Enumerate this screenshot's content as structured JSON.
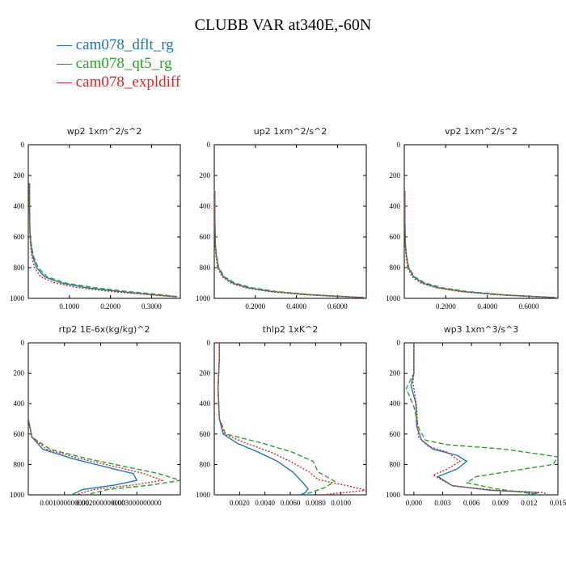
{
  "title": "CLUBB VAR at340E,-60N",
  "legend": [
    {
      "label": "cam078_dflt_rg",
      "color": "#1f77b4"
    },
    {
      "label": "cam078_qt5_rg",
      "color": "#2ca02c"
    },
    {
      "label": "cam078_expldiff",
      "color": "#d62728"
    }
  ],
  "chart_data": [
    {
      "type": "line",
      "title": "wp2   1xm^2/s^2",
      "xlim": [
        0,
        0.37
      ],
      "ylim": [
        0,
        1000
      ],
      "xticks": [
        {
          "v": 0.1,
          "l": "0.1000"
        },
        {
          "v": 0.2,
          "l": "0.2000"
        },
        {
          "v": 0.3,
          "l": "0.3000"
        }
      ],
      "yticks": [
        "0",
        "200",
        "400",
        "600",
        "800",
        "1000"
      ],
      "series": [
        {
          "name": "cam078_dflt_rg",
          "x": [
            0.003,
            0.003,
            0.004,
            0.006,
            0.01,
            0.02,
            0.04,
            0.08,
            0.14,
            0.22,
            0.3,
            0.36
          ],
          "y": [
            250,
            400,
            560,
            640,
            720,
            800,
            860,
            900,
            930,
            955,
            975,
            990
          ]
        },
        {
          "name": "cam078_qt5_rg",
          "x": [
            0.003,
            0.003,
            0.004,
            0.007,
            0.012,
            0.024,
            0.046,
            0.09,
            0.16,
            0.24,
            0.32,
            0.37
          ],
          "y": [
            250,
            400,
            560,
            640,
            720,
            800,
            860,
            900,
            930,
            955,
            975,
            990
          ]
        },
        {
          "name": "cam078_expldiff",
          "x": [
            0.003,
            0.003,
            0.004,
            0.005,
            0.008,
            0.015,
            0.03,
            0.065,
            0.12,
            0.2,
            0.29,
            0.36
          ],
          "y": [
            250,
            400,
            560,
            640,
            720,
            800,
            860,
            900,
            930,
            955,
            975,
            990
          ]
        }
      ]
    },
    {
      "type": "line",
      "title": "up2   1xm^2/s^2",
      "xlim": [
        0,
        0.74
      ],
      "ylim": [
        0,
        1000
      ],
      "xticks": [
        {
          "v": 0.2,
          "l": "0.2000"
        },
        {
          "v": 0.4,
          "l": "0.4000"
        },
        {
          "v": 0.6,
          "l": "0.6000"
        }
      ],
      "yticks": [
        "0",
        "200",
        "400",
        "600",
        "800",
        "1000"
      ],
      "series": [
        {
          "name": "cam078_dflt_rg",
          "x": [
            0.003,
            0.003,
            0.005,
            0.01,
            0.02,
            0.045,
            0.09,
            0.16,
            0.28,
            0.45,
            0.62,
            0.73
          ],
          "y": [
            300,
            500,
            640,
            720,
            800,
            860,
            900,
            930,
            955,
            975,
            988,
            995
          ]
        },
        {
          "name": "cam078_qt5_rg",
          "x": [
            0.003,
            0.003,
            0.005,
            0.011,
            0.022,
            0.05,
            0.1,
            0.18,
            0.3,
            0.47,
            0.64,
            0.74
          ],
          "y": [
            300,
            500,
            640,
            720,
            800,
            860,
            900,
            930,
            955,
            975,
            988,
            995
          ]
        },
        {
          "name": "cam078_expldiff",
          "x": [
            0.003,
            0.003,
            0.004,
            0.008,
            0.016,
            0.038,
            0.08,
            0.15,
            0.26,
            0.43,
            0.6,
            0.72
          ],
          "y": [
            300,
            500,
            640,
            720,
            800,
            860,
            900,
            930,
            955,
            975,
            988,
            995
          ]
        }
      ]
    },
    {
      "type": "line",
      "title": "vp2   1xm^2/s^2",
      "xlim": [
        0,
        0.74
      ],
      "ylim": [
        0,
        1000
      ],
      "xticks": [
        {
          "v": 0.2,
          "l": "0.2000"
        },
        {
          "v": 0.4,
          "l": "0.4000"
        },
        {
          "v": 0.6,
          "l": "0.6000"
        }
      ],
      "yticks": [
        "0",
        "200",
        "400",
        "600",
        "800",
        "1000"
      ],
      "series": [
        {
          "name": "cam078_dflt_rg",
          "x": [
            0.003,
            0.003,
            0.005,
            0.01,
            0.02,
            0.045,
            0.09,
            0.16,
            0.28,
            0.45,
            0.62,
            0.73
          ],
          "y": [
            300,
            500,
            640,
            720,
            800,
            860,
            900,
            930,
            955,
            975,
            988,
            995
          ]
        },
        {
          "name": "cam078_qt5_rg",
          "x": [
            0.003,
            0.003,
            0.005,
            0.011,
            0.022,
            0.05,
            0.1,
            0.18,
            0.3,
            0.47,
            0.64,
            0.74
          ],
          "y": [
            300,
            500,
            640,
            720,
            800,
            860,
            900,
            930,
            955,
            975,
            988,
            995
          ]
        },
        {
          "name": "cam078_expldiff",
          "x": [
            0.003,
            0.003,
            0.004,
            0.008,
            0.016,
            0.038,
            0.08,
            0.15,
            0.26,
            0.43,
            0.6,
            0.72
          ],
          "y": [
            300,
            500,
            640,
            720,
            800,
            860,
            900,
            930,
            955,
            975,
            988,
            995
          ]
        }
      ]
    },
    {
      "type": "line",
      "title": "rtp2   1E-6x(kg/kg)^2",
      "xlim": [
        0,
        0.0042
      ],
      "ylim": [
        0,
        1000
      ],
      "xticks": [
        {
          "v": 0.001,
          "l": "0.001000000000"
        },
        {
          "v": 0.002,
          "l": "0.002000000000"
        },
        {
          "v": 0.003,
          "l": "0.003000000000"
        }
      ],
      "yticks": [
        "0",
        "200",
        "400",
        "600",
        "800",
        "1000"
      ],
      "series": [
        {
          "name": "cam078_dflt_rg",
          "x": [
            0,
            0,
            0.0001,
            0.0004,
            0.0012,
            0.0022,
            0.0029,
            0.003,
            0.0024,
            0.0015,
            0.0012
          ],
          "y": [
            300,
            500,
            620,
            700,
            760,
            820,
            860,
            905,
            935,
            965,
            1000
          ]
        },
        {
          "name": "cam078_qt5_rg",
          "x": [
            0,
            0,
            0.0001,
            0.0006,
            0.0016,
            0.0028,
            0.0036,
            0.0042,
            0.0034,
            0.0022,
            0.0016
          ],
          "y": [
            300,
            500,
            620,
            700,
            760,
            820,
            860,
            905,
            935,
            965,
            1000
          ]
        },
        {
          "name": "cam078_expldiff",
          "x": [
            0,
            0,
            0.0001,
            0.0005,
            0.0014,
            0.0025,
            0.0032,
            0.0037,
            0.0029,
            0.0018,
            0.0013
          ],
          "y": [
            300,
            500,
            620,
            700,
            760,
            820,
            860,
            905,
            935,
            965,
            1000
          ]
        }
      ]
    },
    {
      "type": "line",
      "title": "thlp2   1xK^2",
      "xlim": [
        0,
        0.012
      ],
      "ylim": [
        0,
        1000
      ],
      "xticks": [
        {
          "v": 0.002,
          "l": "0.0020"
        },
        {
          "v": 0.004,
          "l": "0.0040"
        },
        {
          "v": 0.006,
          "l": "0.0060"
        },
        {
          "v": 0.008,
          "l": "0.0080"
        },
        {
          "v": 0.01,
          "l": "0.0100"
        }
      ],
      "yticks": [
        "0",
        "200",
        "400",
        "600",
        "800",
        "1000"
      ],
      "series": [
        {
          "name": "cam078_dflt_rg",
          "x": [
            0.0004,
            0.0004,
            0.0003,
            0.0004,
            0.0007,
            0.0018,
            0.0035,
            0.005,
            0.0062,
            0.007,
            0.0074,
            0.0072,
            0.0068
          ],
          "y": [
            0,
            100,
            300,
            500,
            600,
            660,
            720,
            780,
            850,
            920,
            960,
            985,
            1000
          ]
        },
        {
          "name": "cam078_qt5_rg",
          "x": [
            0.0004,
            0.0004,
            0.0003,
            0.0004,
            0.0009,
            0.0038,
            0.0062,
            0.0078,
            0.0082,
            0.0095,
            0.0088,
            0.0076,
            0.007
          ],
          "y": [
            0,
            100,
            300,
            500,
            600,
            660,
            720,
            780,
            850,
            910,
            950,
            985,
            1000
          ]
        },
        {
          "name": "cam078_expldiff",
          "x": [
            0.0004,
            0.0004,
            0.0003,
            0.0004,
            0.0008,
            0.0025,
            0.0045,
            0.006,
            0.0075,
            0.0082,
            0.0105,
            0.012,
            0.0085
          ],
          "y": [
            0,
            100,
            300,
            500,
            600,
            660,
            720,
            780,
            850,
            900,
            940,
            970,
            1000
          ]
        }
      ]
    },
    {
      "type": "line",
      "title": "wp3   1xm^3/s^3",
      "xlim": [
        -0.001,
        0.015
      ],
      "ylim": [
        0,
        1000
      ],
      "xticks": [
        {
          "v": 0.0,
          "l": "0.000"
        },
        {
          "v": 0.003,
          "l": "0.003"
        },
        {
          "v": 0.006,
          "l": "0.006"
        },
        {
          "v": 0.009,
          "l": "0.009"
        },
        {
          "v": 0.012,
          "l": "0.012"
        },
        {
          "v": 0.015,
          "l": "0.015"
        }
      ],
      "yticks": [
        "0",
        "200",
        "400",
        "600",
        "800",
        "1000"
      ],
      "series": [
        {
          "name": "cam078_dflt_rg",
          "x": [
            0,
            0,
            -0.0003,
            0.0002,
            0.0003,
            0.0008,
            0.002,
            0.0045,
            0.0055,
            0.0045,
            0.0025,
            0.004,
            0.008,
            0.013,
            0.012
          ],
          "y": [
            0,
            200,
            280,
            400,
            550,
            640,
            700,
            740,
            780,
            830,
            880,
            940,
            970,
            985,
            1000
          ]
        },
        {
          "name": "cam078_qt5_rg",
          "x": [
            0,
            0,
            -0.0008,
            0.0,
            0.0005,
            0.0012,
            0.0035,
            0.0095,
            0.015,
            0.0145,
            0.0065,
            0.0055,
            0.0085,
            0.0115,
            0.013
          ],
          "y": [
            0,
            200,
            300,
            420,
            560,
            640,
            670,
            700,
            750,
            800,
            880,
            920,
            960,
            985,
            1000
          ]
        },
        {
          "name": "cam078_expldiff",
          "x": [
            0,
            0,
            -0.0001,
            0.0003,
            0.0004,
            0.0005,
            0.0015,
            0.0035,
            0.0048,
            0.0035,
            0.002,
            0.004,
            0.0085,
            0.0135,
            0.014
          ],
          "y": [
            0,
            200,
            260,
            420,
            560,
            620,
            680,
            720,
            780,
            830,
            870,
            940,
            970,
            985,
            1000
          ]
        }
      ]
    }
  ]
}
